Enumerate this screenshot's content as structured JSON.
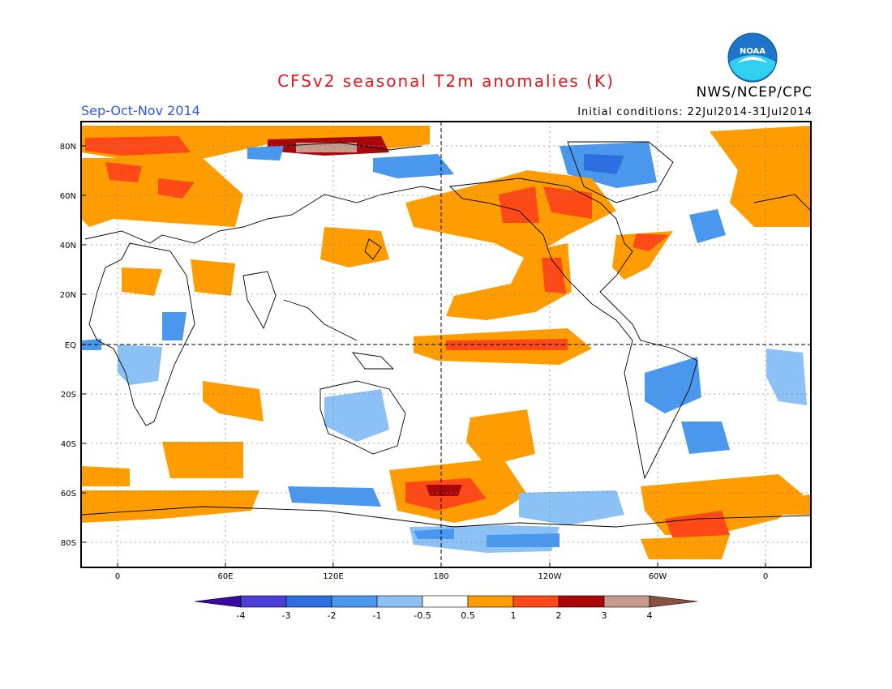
{
  "title": "CFSv2 seasonal T2m anomalies (K)",
  "period": "Sep-Oct-Nov 2014",
  "initial_conditions": "Initial conditions: 22Jul2014-31Jul2014",
  "agency": "NWS/NCEP/CPC",
  "logo_text": "NOAA",
  "lat_labels": [
    "80N",
    "60N",
    "40N",
    "20N",
    "EQ",
    "20S",
    "40S",
    "60S",
    "80S"
  ],
  "lon_labels": [
    "0",
    "60E",
    "120E",
    "180",
    "120W",
    "60W",
    "0"
  ],
  "colorbar": {
    "labels": [
      "-4",
      "-3",
      "-2",
      "-1",
      "-0.5",
      "0.5",
      "1",
      "2",
      "3",
      "4"
    ],
    "colors": [
      "#3a0aa0",
      "#4a3fd6",
      "#2d6fe0",
      "#4a98ee",
      "#8cc1f5",
      "#ffffff",
      "#ff9d00",
      "#ff4a18",
      "#a8080a",
      "#c89a8c",
      "#8a5040"
    ]
  }
}
